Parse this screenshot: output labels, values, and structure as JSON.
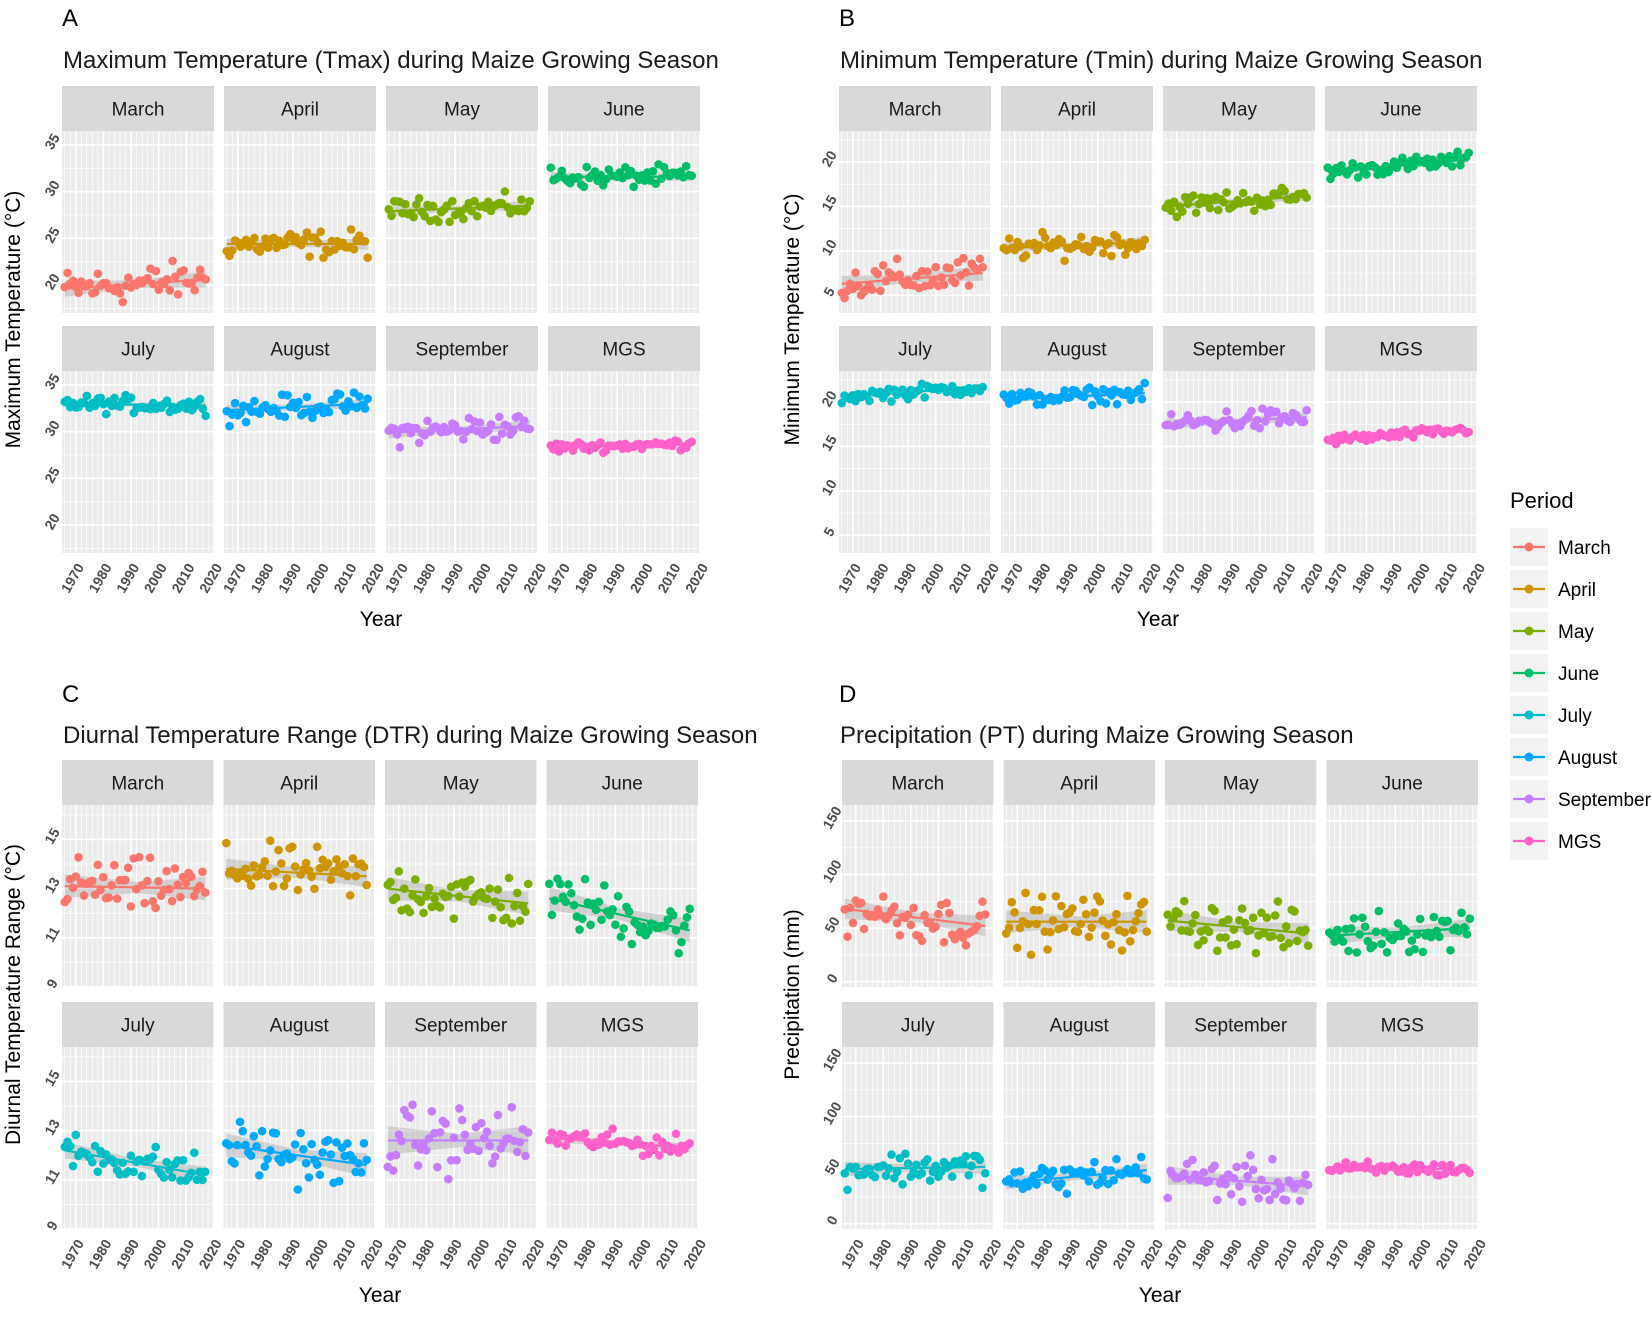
{
  "legend": {
    "title": "Period",
    "items": [
      {
        "label": "March",
        "color": "#F8766D"
      },
      {
        "label": "April",
        "color": "#CD9600"
      },
      {
        "label": "May",
        "color": "#7CAE00"
      },
      {
        "label": "June",
        "color": "#00BE67"
      },
      {
        "label": "July",
        "color": "#00BFC4"
      },
      {
        "label": "August",
        "color": "#00A9FF"
      },
      {
        "label": "September",
        "color": "#C77CFF"
      },
      {
        "label": "MGS",
        "color": "#FF61CC"
      }
    ]
  },
  "chart_data": [
    {
      "type": "scatter",
      "panel_letter": "A",
      "title": "Maximum Temperature (Tmax) during Maize Growing Season",
      "xlabel": "Year",
      "ylabel": "Maximum Temperature (°C)",
      "xlim": [
        1965,
        2020
      ],
      "xticks": [
        1970,
        1980,
        1990,
        2000,
        2010,
        2020
      ],
      "ylim": [
        17,
        36.5
      ],
      "yticks": [
        20,
        25,
        30,
        35
      ],
      "facets": [
        {
          "label": "March",
          "color": "#F8766D",
          "y_start": 19.6,
          "y_end": 20.6,
          "spread": 1.8
        },
        {
          "label": "April",
          "color": "#CD9600",
          "y_start": 24.4,
          "y_end": 24.4,
          "spread": 1.3
        },
        {
          "label": "May",
          "color": "#7CAE00",
          "y_start": 27.9,
          "y_end": 28.5,
          "spread": 1.1
        },
        {
          "label": "June",
          "color": "#00BE67",
          "y_start": 31.6,
          "y_end": 31.6,
          "spread": 1.0
        },
        {
          "label": "July",
          "color": "#00BFC4",
          "y_start": 33.0,
          "y_end": 32.8,
          "spread": 0.8
        },
        {
          "label": "August",
          "color": "#00A9FF",
          "y_start": 32.3,
          "y_end": 33.0,
          "spread": 1.1
        },
        {
          "label": "September",
          "color": "#C77CFF",
          "y_start": 29.9,
          "y_end": 30.6,
          "spread": 1.3
        },
        {
          "label": "MGS",
          "color": "#FF61CC",
          "y_start": 28.3,
          "y_end": 28.7,
          "spread": 0.5
        }
      ]
    },
    {
      "type": "scatter",
      "panel_letter": "B",
      "title": "Minimum Temperature (Tmin) during Maize Growing Season",
      "xlabel": "Year",
      "ylabel": "Minimum Temperature (°C)",
      "xlim": [
        1965,
        2020
      ],
      "xticks": [
        1970,
        1980,
        1990,
        2000,
        2010,
        2020
      ],
      "ylim": [
        3,
        23.5
      ],
      "yticks": [
        5,
        10,
        15,
        20
      ],
      "facets": [
        {
          "label": "March",
          "color": "#F8766D",
          "y_start": 6.3,
          "y_end": 7.5,
          "spread": 1.8
        },
        {
          "label": "April",
          "color": "#CD9600",
          "y_start": 10.3,
          "y_end": 11.0,
          "spread": 1.2
        },
        {
          "label": "May",
          "color": "#7CAE00",
          "y_start": 15.0,
          "y_end": 16.2,
          "spread": 1.1
        },
        {
          "label": "June",
          "color": "#00BE67",
          "y_start": 18.9,
          "y_end": 20.3,
          "spread": 0.8
        },
        {
          "label": "July",
          "color": "#00BFC4",
          "y_start": 20.6,
          "y_end": 21.7,
          "spread": 0.7
        },
        {
          "label": "August",
          "color": "#00A9FF",
          "y_start": 20.3,
          "y_end": 21.0,
          "spread": 0.8
        },
        {
          "label": "September",
          "color": "#C77CFF",
          "y_start": 17.5,
          "y_end": 18.3,
          "spread": 1.2
        },
        {
          "label": "MGS",
          "color": "#FF61CC",
          "y_start": 15.7,
          "y_end": 16.9,
          "spread": 0.5
        }
      ]
    },
    {
      "type": "scatter",
      "panel_letter": "C",
      "title": "Diurnal Temperature Range (DTR) during Maize Growing Season",
      "xlabel": "Year",
      "ylabel": "Diurnal Temperature Range (°C)",
      "xlim": [
        1965,
        2020
      ],
      "xticks": [
        1970,
        1980,
        1990,
        2000,
        2010,
        2020
      ],
      "ylim": [
        9,
        16.4
      ],
      "yticks": [
        9,
        11,
        13,
        15
      ],
      "facets": [
        {
          "label": "March",
          "color": "#F8766D",
          "y_start": 13.1,
          "y_end": 13.0,
          "spread": 1.0
        },
        {
          "label": "April",
          "color": "#CD9600",
          "y_start": 13.8,
          "y_end": 13.5,
          "spread": 0.9
        },
        {
          "label": "May",
          "color": "#7CAE00",
          "y_start": 13.0,
          "y_end": 12.4,
          "spread": 1.0
        },
        {
          "label": "June",
          "color": "#00BE67",
          "y_start": 12.6,
          "y_end": 11.3,
          "spread": 1.0
        },
        {
          "label": "July",
          "color": "#00BFC4",
          "y_start": 12.2,
          "y_end": 11.2,
          "spread": 0.7
        },
        {
          "label": "August",
          "color": "#00A9FF",
          "y_start": 12.4,
          "y_end": 11.6,
          "spread": 1.0
        },
        {
          "label": "September",
          "color": "#C77CFF",
          "y_start": 12.6,
          "y_end": 12.6,
          "spread": 1.2
        },
        {
          "label": "MGS",
          "color": "#FF61CC",
          "y_start": 12.7,
          "y_end": 12.3,
          "spread": 0.4
        }
      ]
    },
    {
      "type": "scatter",
      "panel_letter": "D",
      "title": "Precipitation (PT) during Maize Growing Season",
      "xlabel": "Year",
      "ylabel": "Precipitation (mm)",
      "xlim": [
        1965,
        2020
      ],
      "xticks": [
        1970,
        1980,
        1990,
        2000,
        2010,
        2020
      ],
      "ylim": [
        -5,
        165
      ],
      "yticks": [
        0,
        50,
        100,
        150
      ],
      "facets": [
        {
          "label": "March",
          "color": "#F8766D",
          "y_start": 68,
          "y_end": 52,
          "spread": 20
        },
        {
          "label": "April",
          "color": "#CD9600",
          "y_start": 56,
          "y_end": 56,
          "spread": 22
        },
        {
          "label": "May",
          "color": "#7CAE00",
          "y_start": 57,
          "y_end": 45,
          "spread": 20
        },
        {
          "label": "June",
          "color": "#00BE67",
          "y_start": 43,
          "y_end": 50,
          "spread": 18
        },
        {
          "label": "July",
          "color": "#00BFC4",
          "y_start": 51,
          "y_end": 53,
          "spread": 14
        },
        {
          "label": "August",
          "color": "#00A9FF",
          "y_start": 38,
          "y_end": 50,
          "spread": 13
        },
        {
          "label": "September",
          "color": "#C77CFF",
          "y_start": 45,
          "y_end": 35,
          "spread": 18
        },
        {
          "label": "MGS",
          "color": "#FF61CC",
          "y_start": 51,
          "y_end": 51,
          "spread": 6
        }
      ]
    }
  ]
}
